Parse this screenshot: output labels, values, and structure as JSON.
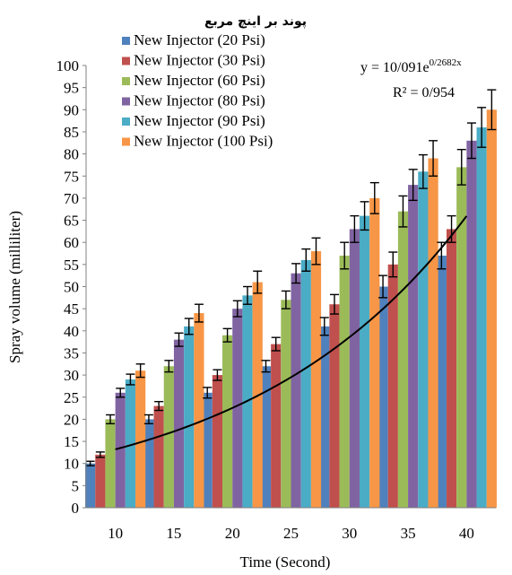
{
  "chart_data": {
    "type": "bar",
    "title": "پوند بر اینچ مربع",
    "xlabel": "Time (Second)",
    "ylabel": "Spray volume (milliliter)",
    "categories": [
      "10",
      "15",
      "20",
      "25",
      "30",
      "35",
      "40"
    ],
    "ylim": [
      0,
      100
    ],
    "yticks": [
      0,
      5,
      10,
      15,
      20,
      25,
      30,
      35,
      40,
      45,
      50,
      55,
      60,
      65,
      70,
      75,
      80,
      85,
      90,
      95,
      100
    ],
    "grid": false,
    "legend_position": "top-left",
    "series": [
      {
        "name": "New Injector (20 Psi)",
        "color": "#4F81BD",
        "values": [
          10,
          20,
          26,
          32,
          41,
          50,
          57
        ],
        "errors": [
          0.5,
          1,
          1.2,
          1.3,
          2,
          2.5,
          3
        ]
      },
      {
        "name": "New Injector (30 Psi)",
        "color": "#C0504D",
        "values": [
          12,
          23,
          30,
          37,
          46,
          55,
          63
        ],
        "errors": [
          0.6,
          1,
          1.2,
          1.5,
          2.2,
          2.8,
          3
        ]
      },
      {
        "name": "New Injector (60 Psi)",
        "color": "#9BBB59",
        "values": [
          20,
          32,
          39,
          47,
          57,
          67,
          77
        ],
        "errors": [
          1,
          1.3,
          1.5,
          2,
          3,
          3.5,
          4
        ]
      },
      {
        "name": "New Injector (80 Psi)",
        "color": "#8064A2",
        "values": [
          26,
          38,
          45,
          53,
          63,
          73,
          83
        ],
        "errors": [
          1,
          1.5,
          1.8,
          2.2,
          3,
          3.5,
          4
        ]
      },
      {
        "name": "New Injector (90 Psi)",
        "color": "#4BACC6",
        "values": [
          29,
          41,
          48,
          56,
          66,
          76,
          86
        ],
        "errors": [
          1.2,
          1.8,
          2,
          2.5,
          3.2,
          3.8,
          4.5
        ]
      },
      {
        "name": "New Injector (100 Psi)",
        "color": "#F79646",
        "values": [
          31,
          44,
          51,
          58,
          70,
          79,
          90
        ],
        "errors": [
          1.5,
          2,
          2.5,
          3,
          3.5,
          4,
          4.5
        ]
      }
    ],
    "trendline": {
      "type": "exponential",
      "a": 10.091,
      "b": 0.2682,
      "equation_text": "y = 10/091e",
      "exponent_text": "0/2682x",
      "r2_text": "R² = 0/954",
      "color": "#000000"
    }
  }
}
